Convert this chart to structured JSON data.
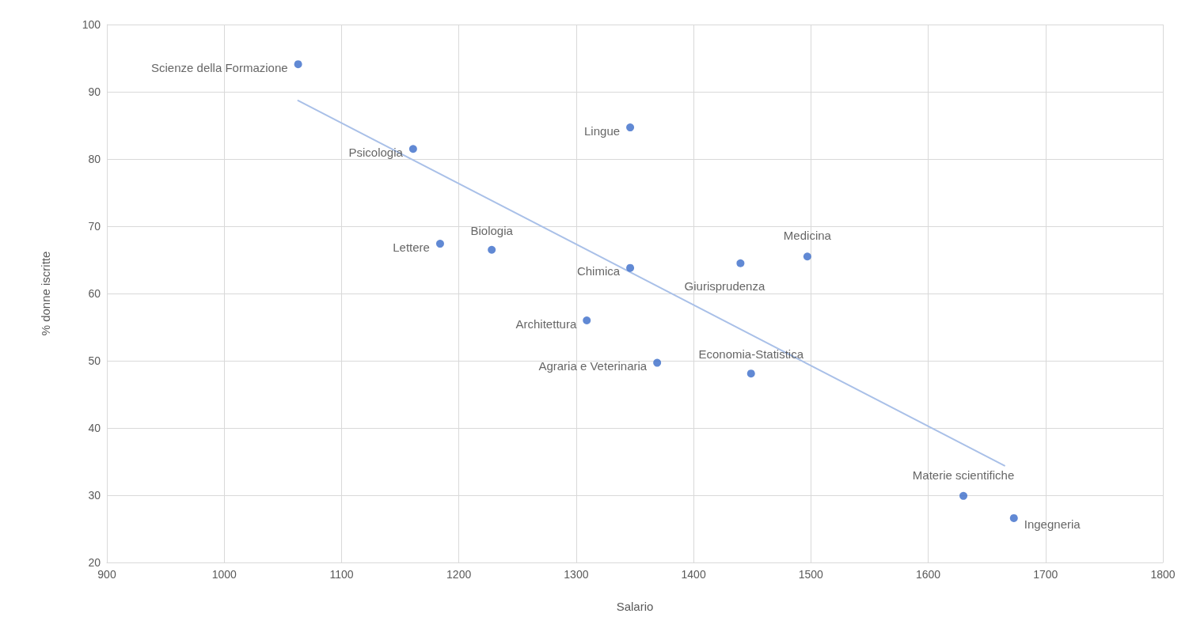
{
  "chart_data": {
    "type": "scatter",
    "xlabel": "Salario",
    "ylabel": "% donne iscritte",
    "xlim": [
      900,
      1800
    ],
    "xticks": [
      900,
      1000,
      1100,
      1200,
      1300,
      1400,
      1500,
      1600,
      1700,
      1800
    ],
    "ylim": [
      20,
      100
    ],
    "yticks": [
      20,
      30,
      40,
      50,
      60,
      70,
      80,
      90,
      100
    ],
    "grid": true,
    "marker": "circle",
    "series": [
      {
        "color": "#3a6bc9",
        "x": [
          1063,
          1161,
          1346,
          1184,
          1228,
          1346,
          1440,
          1497,
          1309,
          1369,
          1449,
          1630,
          1673
        ],
        "values": [
          94.1,
          81.5,
          84.7,
          67.4,
          66.5,
          63.8,
          64.5,
          65.5,
          56.0,
          49.7,
          48.1,
          29.9,
          26.6
        ]
      },
      {
        "type": "line",
        "color": "#a9c0e8",
        "marker": "none",
        "line_style": "solid",
        "x": [
          1063,
          1665
        ],
        "values": [
          88.7,
          34.4
        ]
      }
    ],
    "annotations": [
      {
        "text": "Scienze della Formazione",
        "x": 1063,
        "y": 94.1
      },
      {
        "text": "Psicologia",
        "x": 1161,
        "y": 81.5
      },
      {
        "text": "Lingue",
        "x": 1346,
        "y": 84.7
      },
      {
        "text": "Lettere",
        "x": 1184,
        "y": 67.4
      },
      {
        "text": "Biologia",
        "x": 1228,
        "y": 66.5
      },
      {
        "text": "Chimica",
        "x": 1346,
        "y": 63.8
      },
      {
        "text": "Giurisprudenza",
        "x": 1440,
        "y": 64.5
      },
      {
        "text": "Medicina",
        "x": 1497,
        "y": 65.5
      },
      {
        "text": "Architettura",
        "x": 1309,
        "y": 56.0
      },
      {
        "text": "Agraria e Veterinaria",
        "x": 1369,
        "y": 49.7
      },
      {
        "text": "Economia-Statistica",
        "x": 1449,
        "y": 48.1
      },
      {
        "text": "Materie scientifiche",
        "x": 1630,
        "y": 29.9
      },
      {
        "text": "Ingegneria",
        "x": 1673,
        "y": 26.6
      }
    ]
  }
}
